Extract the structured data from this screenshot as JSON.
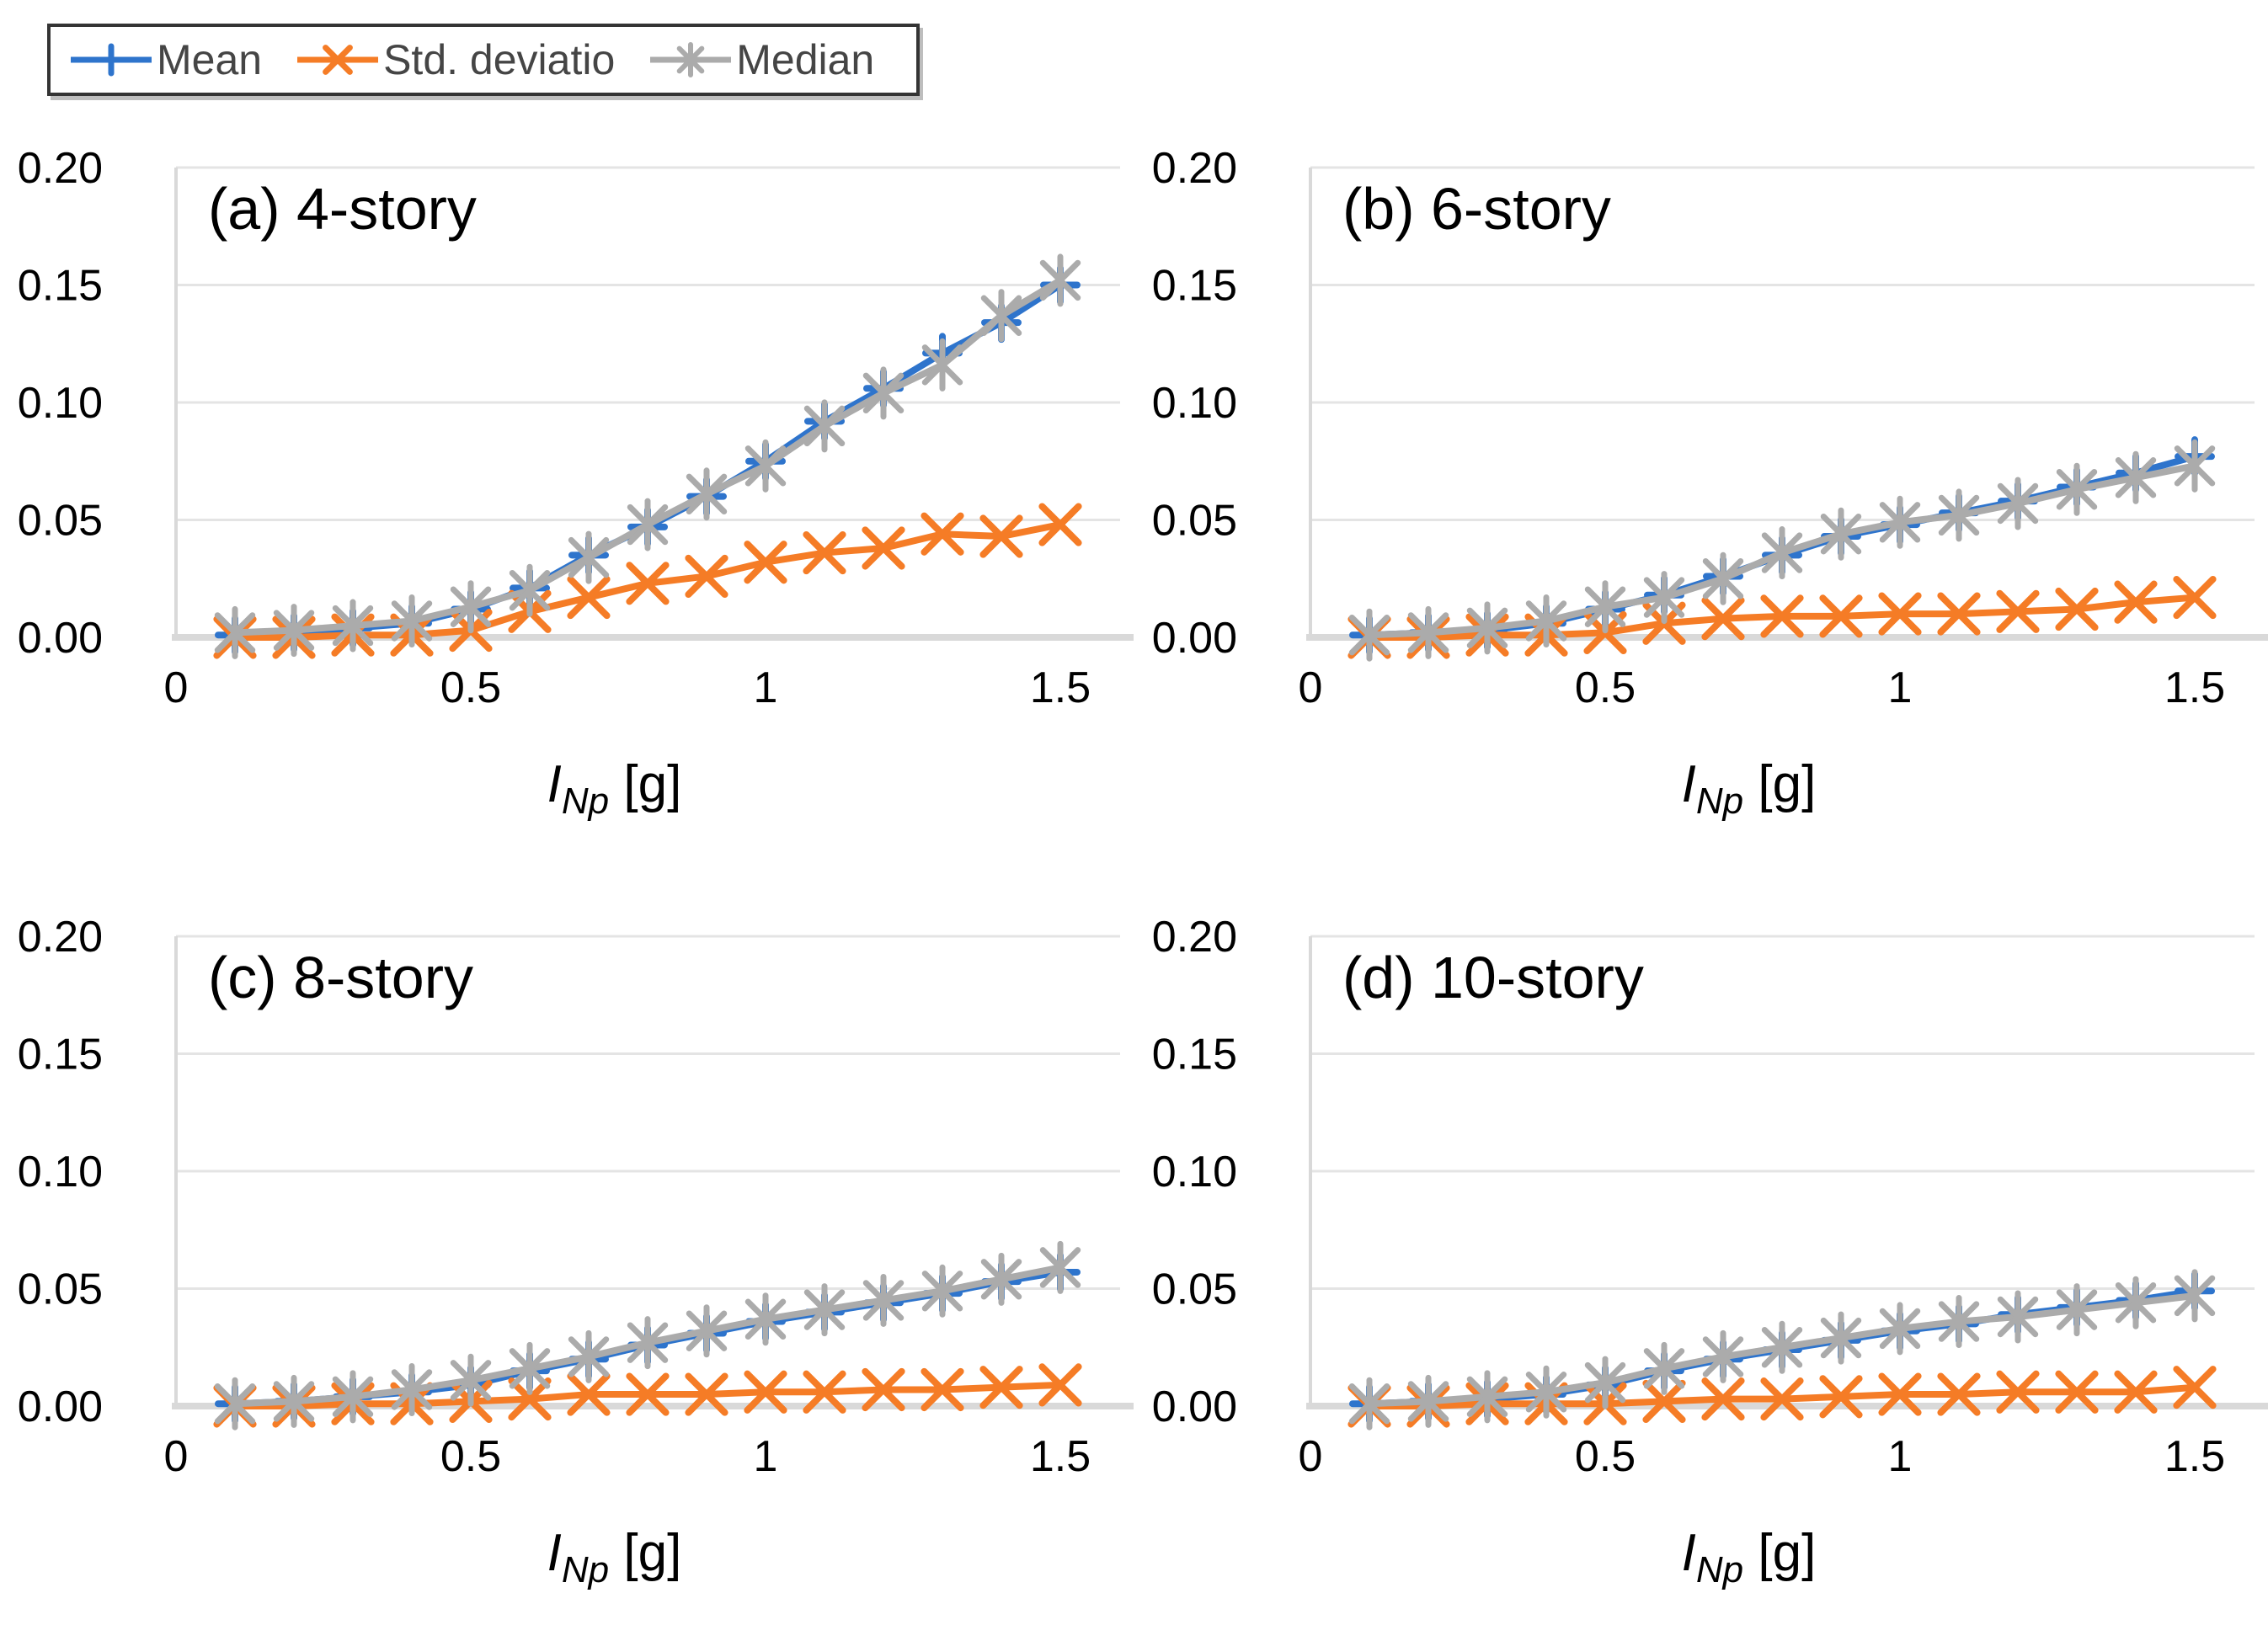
{
  "page": {
    "background": "#ffffff"
  },
  "legend": {
    "border_color": "#343434",
    "text_color": "#454545",
    "items": [
      {
        "label": "Mean",
        "color": "#2E74CC",
        "marker": "plus"
      },
      {
        "label": "Std. deviatio",
        "color": "#F57C26",
        "marker": "x"
      },
      {
        "label": "Median",
        "color": "#ABABAB",
        "marker": "asterisk"
      }
    ]
  },
  "chart_data": [
    {
      "type": "line",
      "panel_label": "(a) 4-story",
      "xlabel": {
        "symbol": "I",
        "subscript": "Np",
        "unit": " [g]"
      },
      "xlim": [
        0,
        1.6
      ],
      "ylim": [
        0,
        0.2
      ],
      "grid": true,
      "legend_position": "top-left",
      "x_ticks": [
        0,
        0.5,
        1,
        1.5
      ],
      "x_tick_labels": [
        "0",
        "0.5",
        "1",
        "1.5"
      ],
      "y_ticks": [
        0,
        0.05,
        0.1,
        0.15,
        0.2
      ],
      "y_tick_labels": [
        "0.00",
        "0.05",
        "0.10",
        "0.15",
        "0.20"
      ],
      "x": [
        0.1,
        0.2,
        0.3,
        0.4,
        0.5,
        0.6,
        0.7,
        0.8,
        0.9,
        1.0,
        1.1,
        1.2,
        1.3,
        1.4,
        1.5
      ],
      "series": [
        {
          "name": "Mean",
          "marker": "plus",
          "color": "#2E74CC",
          "values": [
            0.001,
            0.002,
            0.004,
            0.006,
            0.012,
            0.021,
            0.035,
            0.047,
            0.06,
            0.075,
            0.092,
            0.106,
            0.121,
            0.134,
            0.15
          ]
        },
        {
          "name": "Std. deviatio",
          "marker": "x",
          "color": "#F57C26",
          "values": [
            0.0,
            0.0,
            0.001,
            0.001,
            0.003,
            0.011,
            0.017,
            0.023,
            0.026,
            0.032,
            0.036,
            0.038,
            0.044,
            0.043,
            0.048
          ]
        },
        {
          "name": "Median",
          "marker": "asterisk",
          "color": "#ABABAB",
          "values": [
            0.002,
            0.003,
            0.005,
            0.007,
            0.013,
            0.02,
            0.034,
            0.048,
            0.061,
            0.073,
            0.09,
            0.104,
            0.116,
            0.137,
            0.152
          ]
        }
      ]
    },
    {
      "type": "line",
      "panel_label": "(b) 6-story",
      "xlabel": {
        "symbol": "I",
        "subscript": "Np",
        "unit": " [g]"
      },
      "xlim": [
        0,
        1.6
      ],
      "ylim": [
        0,
        0.2
      ],
      "grid": true,
      "x_ticks": [
        0,
        0.5,
        1,
        1.5
      ],
      "x_tick_labels": [
        "0",
        "0.5",
        "1",
        "1.5"
      ],
      "y_ticks": [
        0,
        0.05,
        0.1,
        0.15,
        0.2
      ],
      "y_tick_labels": [
        "0.00",
        "0.05",
        "0.10",
        "0.15",
        "0.20"
      ],
      "x": [
        0.1,
        0.2,
        0.3,
        0.4,
        0.5,
        0.6,
        0.7,
        0.8,
        0.9,
        1.0,
        1.1,
        1.2,
        1.3,
        1.4,
        1.5
      ],
      "series": [
        {
          "name": "Mean",
          "marker": "plus",
          "color": "#2E74CC",
          "values": [
            0.001,
            0.002,
            0.003,
            0.006,
            0.012,
            0.018,
            0.026,
            0.035,
            0.043,
            0.048,
            0.053,
            0.058,
            0.064,
            0.07,
            0.077
          ]
        },
        {
          "name": "Std. deviatio",
          "marker": "x",
          "color": "#F57C26",
          "values": [
            0.0,
            0.0,
            0.001,
            0.001,
            0.002,
            0.006,
            0.008,
            0.009,
            0.009,
            0.01,
            0.01,
            0.011,
            0.012,
            0.015,
            0.017
          ]
        },
        {
          "name": "Median",
          "marker": "asterisk",
          "color": "#ABABAB",
          "values": [
            0.001,
            0.002,
            0.004,
            0.007,
            0.013,
            0.017,
            0.025,
            0.036,
            0.044,
            0.049,
            0.052,
            0.057,
            0.063,
            0.068,
            0.073
          ]
        }
      ]
    },
    {
      "type": "line",
      "panel_label": "(c) 8-story",
      "xlabel": {
        "symbol": "I",
        "subscript": "Np",
        "unit": " [g]"
      },
      "xlim": [
        0,
        1.6
      ],
      "ylim": [
        0,
        0.2
      ],
      "grid": true,
      "x_ticks": [
        0,
        0.5,
        1,
        1.5
      ],
      "x_tick_labels": [
        "0",
        "0.5",
        "1",
        "1.5"
      ],
      "y_ticks": [
        0,
        0.05,
        0.1,
        0.15,
        0.2
      ],
      "y_tick_labels": [
        "0.00",
        "0.05",
        "0.10",
        "0.15",
        "0.20"
      ],
      "x": [
        0.1,
        0.2,
        0.3,
        0.4,
        0.5,
        0.6,
        0.7,
        0.8,
        0.9,
        1.0,
        1.1,
        1.2,
        1.3,
        1.4,
        1.5
      ],
      "series": [
        {
          "name": "Mean",
          "marker": "plus",
          "color": "#2E74CC",
          "values": [
            0.001,
            0.002,
            0.004,
            0.006,
            0.009,
            0.015,
            0.02,
            0.026,
            0.031,
            0.036,
            0.04,
            0.044,
            0.048,
            0.053,
            0.057
          ]
        },
        {
          "name": "Std. deviatio",
          "marker": "x",
          "color": "#F57C26",
          "values": [
            0.0,
            0.0,
            0.001,
            0.001,
            0.002,
            0.003,
            0.005,
            0.005,
            0.005,
            0.006,
            0.006,
            0.007,
            0.007,
            0.008,
            0.009
          ]
        },
        {
          "name": "Median",
          "marker": "asterisk",
          "color": "#ABABAB",
          "values": [
            0.001,
            0.002,
            0.004,
            0.007,
            0.011,
            0.016,
            0.021,
            0.027,
            0.032,
            0.037,
            0.041,
            0.045,
            0.049,
            0.054,
            0.059
          ]
        }
      ]
    },
    {
      "type": "line",
      "panel_label": "(d) 10-story",
      "xlabel": {
        "symbol": "I",
        "subscript": "Np",
        "unit": " [g]"
      },
      "xlim": [
        0,
        1.6
      ],
      "ylim": [
        0,
        0.2
      ],
      "grid": true,
      "x_ticks": [
        0,
        0.5,
        1,
        1.5
      ],
      "x_tick_labels": [
        "0",
        "0.5",
        "1",
        "1.5"
      ],
      "y_ticks": [
        0,
        0.05,
        0.1,
        0.15,
        0.2
      ],
      "y_tick_labels": [
        "0.00",
        "0.05",
        "0.10",
        "0.15",
        "0.20"
      ],
      "x": [
        0.1,
        0.2,
        0.3,
        0.4,
        0.5,
        0.6,
        0.7,
        0.8,
        0.9,
        1.0,
        1.1,
        1.2,
        1.3,
        1.4,
        1.5
      ],
      "series": [
        {
          "name": "Mean",
          "marker": "plus",
          "color": "#2E74CC",
          "values": [
            0.001,
            0.002,
            0.003,
            0.005,
            0.009,
            0.015,
            0.02,
            0.024,
            0.028,
            0.032,
            0.035,
            0.039,
            0.042,
            0.045,
            0.049
          ]
        },
        {
          "name": "Std. deviatio",
          "marker": "x",
          "color": "#F57C26",
          "values": [
            0.0,
            0.0,
            0.001,
            0.001,
            0.001,
            0.002,
            0.003,
            0.003,
            0.004,
            0.005,
            0.005,
            0.006,
            0.006,
            0.006,
            0.008
          ]
        },
        {
          "name": "Median",
          "marker": "asterisk",
          "color": "#ABABAB",
          "values": [
            0.001,
            0.002,
            0.004,
            0.006,
            0.01,
            0.016,
            0.021,
            0.025,
            0.029,
            0.033,
            0.036,
            0.038,
            0.041,
            0.044,
            0.047
          ]
        }
      ]
    }
  ]
}
